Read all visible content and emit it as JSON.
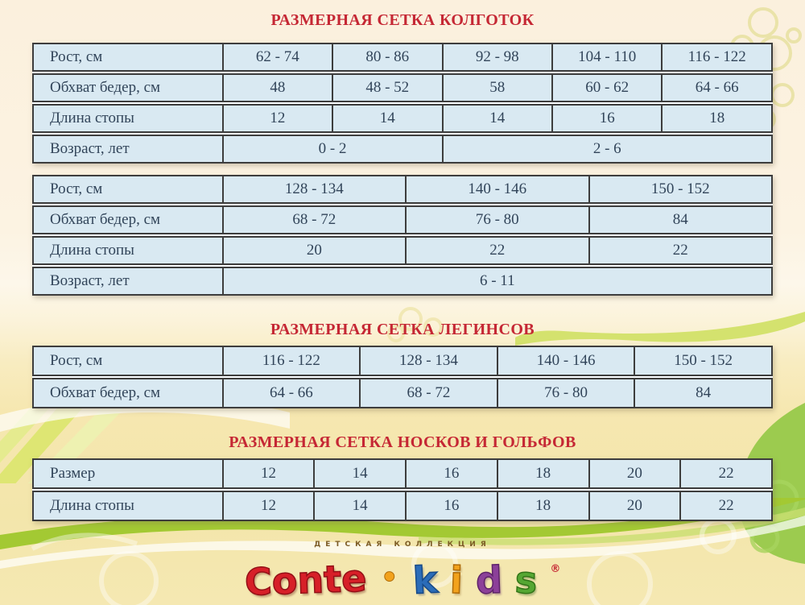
{
  "colors": {
    "title_red": "#c52734",
    "cell_background": "#d9e9f2",
    "cell_text": "#32455a",
    "table_border": "#3d3d3d",
    "page_cream": "#fbf0dd",
    "page_yellow": "#f3e6ab",
    "wave_green_bright": "#a3c933",
    "wave_green_light": "#cfe063",
    "logo_conte_red": "#d71f28",
    "logo_k_blue": "#2b6cb8",
    "logo_i_orange": "#f2a21c",
    "logo_d_purple": "#8c4099",
    "logo_s_green": "#55a733",
    "logo_tagline_brown": "#7c5c26"
  },
  "sections": [
    {
      "title": "РАЗМЕРНАЯ СЕТКА КОЛГОТОК",
      "tables": [
        {
          "cols": 5,
          "rows": [
            {
              "label": "Рост, см",
              "cells": [
                {
                  "t": "62 - 74"
                },
                {
                  "t": "80 - 86"
                },
                {
                  "t": "92 - 98"
                },
                {
                  "t": "104 - 110"
                },
                {
                  "t": "116 - 122"
                }
              ]
            },
            {
              "label": "Обхват бедер, см",
              "cells": [
                {
                  "t": "48"
                },
                {
                  "t": "48 - 52"
                },
                {
                  "t": "58"
                },
                {
                  "t": "60 - 62"
                },
                {
                  "t": "64 - 66"
                }
              ]
            },
            {
              "label": "Длина стопы",
              "cells": [
                {
                  "t": "12"
                },
                {
                  "t": "14"
                },
                {
                  "t": "14"
                },
                {
                  "t": "16"
                },
                {
                  "t": "18"
                }
              ]
            },
            {
              "label": "Возраст, лет",
              "cells": [
                {
                  "t": "0 - 2",
                  "span": 2
                },
                {
                  "t": "2 - 6",
                  "span": 3
                }
              ]
            }
          ]
        },
        {
          "cols": 3,
          "rows": [
            {
              "label": "Рост, см",
              "cells": [
                {
                  "t": "128 - 134"
                },
                {
                  "t": "140 - 146"
                },
                {
                  "t": "150 - 152"
                }
              ]
            },
            {
              "label": "Обхват бедер, см",
              "cells": [
                {
                  "t": "68 - 72"
                },
                {
                  "t": "76 - 80"
                },
                {
                  "t": "84"
                }
              ]
            },
            {
              "label": "Длина стопы",
              "cells": [
                {
                  "t": "20"
                },
                {
                  "t": "22"
                },
                {
                  "t": "22"
                }
              ]
            },
            {
              "label": "Возраст, лет",
              "cells": [
                {
                  "t": "6 - 11",
                  "span": 3
                }
              ]
            }
          ]
        }
      ]
    },
    {
      "title": "РАЗМЕРНАЯ СЕТКА ЛЕГИНСОВ",
      "tables": [
        {
          "cols": 4,
          "rows": [
            {
              "label": "Рост, см",
              "cells": [
                {
                  "t": "116 - 122"
                },
                {
                  "t": "128 - 134"
                },
                {
                  "t": "140 - 146"
                },
                {
                  "t": "150 - 152"
                }
              ]
            },
            {
              "label": "Обхват бедер, см",
              "cells": [
                {
                  "t": "64 - 66"
                },
                {
                  "t": "68 - 72"
                },
                {
                  "t": "76 - 80"
                },
                {
                  "t": "84"
                }
              ]
            }
          ]
        }
      ]
    },
    {
      "title": "РАЗМЕРНАЯ СЕТКА НОСКОВ И ГОЛЬФОВ",
      "tables": [
        {
          "cols": 6,
          "rows": [
            {
              "label": "Размер",
              "cells": [
                {
                  "t": "12"
                },
                {
                  "t": "14"
                },
                {
                  "t": "16"
                },
                {
                  "t": "18"
                },
                {
                  "t": "20"
                },
                {
                  "t": "22"
                }
              ]
            },
            {
              "label": "Длина стопы",
              "cells": [
                {
                  "t": "12"
                },
                {
                  "t": "14"
                },
                {
                  "t": "16"
                },
                {
                  "t": "18"
                },
                {
                  "t": "20"
                },
                {
                  "t": "22"
                }
              ]
            }
          ]
        }
      ]
    }
  ],
  "logo": {
    "tagline": "ДЕТСКАЯ КОЛЛЕКЦИЯ",
    "name_part1": "Conte",
    "separator": "•",
    "letter_k": "k",
    "letter_i": "i",
    "letter_d": "d",
    "letter_s": "s",
    "registered": "®"
  }
}
